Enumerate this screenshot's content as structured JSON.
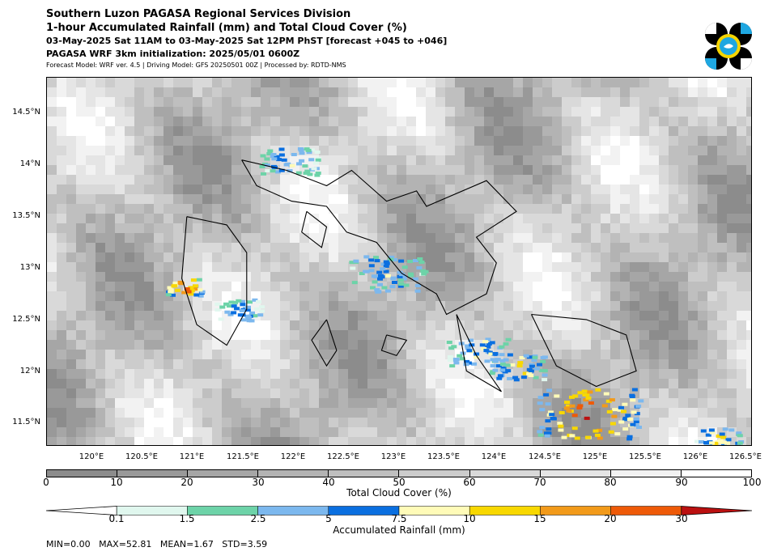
{
  "header": {
    "title1": "Southern Luzon PAGASA Regional Services Division",
    "title2": "1-hour Accumulated Rainfall (mm) and Total Cloud Cover (%)",
    "title3": "03-May-2025 Sat 11AM to 03-May-2025 Sat 12PM PhST [forecast +045 to +046]",
    "title4": "PAGASA WRF 3km initialization: 2025/05/01 0600Z",
    "subtitle": "Forecast Model: WRF ver. 4.5 | Driving Model: GFS 20250501 00Z | Processed by: RDTD-NMS"
  },
  "map": {
    "lon_range": [
      119.5,
      126.55
    ],
    "lat_range": [
      11.28,
      14.85
    ],
    "lat_ticks": [
      "14.5°N",
      "14°N",
      "13.5°N",
      "13°N",
      "12.5°N",
      "12°N",
      "11.5°N"
    ],
    "lat_values": [
      14.5,
      14.0,
      13.5,
      13.0,
      12.5,
      12.0,
      11.5
    ],
    "lon_ticks": [
      "120°E",
      "120.5°E",
      "121°E",
      "121.5°E",
      "122°E",
      "122.5°E",
      "123°E",
      "123.5°E",
      "124°E",
      "124.5°E",
      "125°E",
      "125.5°E",
      "126°E",
      "126.5°E"
    ],
    "lon_values": [
      120.0,
      120.5,
      121.0,
      121.5,
      122.0,
      122.5,
      123.0,
      123.5,
      124.0,
      124.5,
      125.0,
      125.5,
      126.0,
      126.5
    ]
  },
  "cloud_colorbar": {
    "label": "Total Cloud Cover (%)",
    "ticks": [
      "0",
      "10",
      "20",
      "30",
      "40",
      "50",
      "60",
      "70",
      "80",
      "90",
      "100"
    ],
    "colors": [
      "#8c8c8c",
      "#999999",
      "#a6a6a6",
      "#b3b3b3",
      "#bfbfbf",
      "#cccccc",
      "#d9d9d9",
      "#e5e5e5",
      "#f2f2f2",
      "#ffffff"
    ]
  },
  "rain_colorbar": {
    "label": "Accumulated Rainfall (mm)",
    "ticks": [
      "0.1",
      "1.5",
      "2.5",
      "5",
      "7.5",
      "10",
      "15",
      "20",
      "30"
    ],
    "colors": [
      "#e0f7ee",
      "#6dd3a8",
      "#7cb8ee",
      "#0a6fe0",
      "#fffbb8",
      "#f8d800",
      "#f29a1a",
      "#ee5a08",
      "#bb1010"
    ]
  },
  "stats": {
    "text": "MIN=0.00   MAX=52.81   MEAN=1.67   STD=3.59"
  },
  "logo": {
    "name": "pagasa-logo",
    "colors": [
      "#000000",
      "#1ea7e1",
      "#f5d400"
    ]
  }
}
